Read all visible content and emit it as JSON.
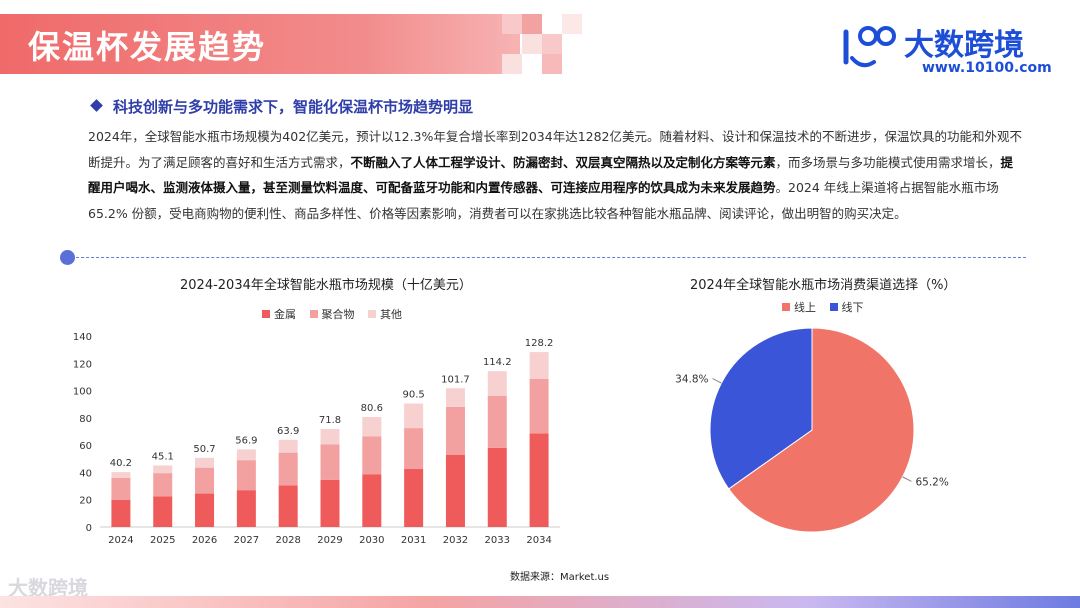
{
  "header": {
    "title": "保温杯发展趋势",
    "logo_text": "大数跨境",
    "logo_url": "www.10100.com"
  },
  "subtitle": "科技创新与多功能需求下，智能化保温杯市场趋势明显",
  "paragraph": {
    "p1": "2024年，全球智能水瓶市场规模为402亿美元，预计以12.3%年复合增长率到2034年达1282亿美元。随着材料、设计和保温技术的不断进步，保温饮具的功能和外观不断提升。为了满足顾客的喜好和生活方式需求，",
    "b1": "不断融入了人体工程学设计、防漏密封、双层真空隔热以及定制化方案等元素",
    "p2": "，而多场景与多功能模式使用需求增长，",
    "b2": "提醒用户喝水、监测液体摄入量，甚至测量饮料温度、可配备蓝牙功能和内置传感器、可连接应用程序的饮具成为未来发展趋势",
    "p3": "。2024 年线上渠道将占据智能水瓶市场 65.2% 份额，受电商购物的便利性、商品多样性、价格等因素影响，消费者可以在家挑选比较各种智能水瓶品牌、阅读评论，做出明智的购买决定。"
  },
  "source": "数据来源：Market.us",
  "footer_logo": "大数跨境",
  "colors": {
    "metal": "#ef5b5b",
    "polymer": "#f2a0a0",
    "other": "#f7d0d0",
    "online": "#f07468",
    "offline": "#3a55d8"
  },
  "chart_data": [
    {
      "type": "bar",
      "stacked": true,
      "title": "2024-2034年全球智能水瓶市场规模（十亿美元）",
      "categories": [
        "2024",
        "2025",
        "2026",
        "2027",
        "2028",
        "2029",
        "2030",
        "2031",
        "2032",
        "2033",
        "2034"
      ],
      "series": [
        {
          "name": "金属",
          "values": [
            20.0,
            22.5,
            24.5,
            27.0,
            30.5,
            34.5,
            38.5,
            42.5,
            53.0,
            58.0,
            68.5
          ]
        },
        {
          "name": "聚合物",
          "values": [
            16.0,
            17.0,
            19.0,
            22.0,
            24.0,
            26.0,
            28.0,
            30.0,
            35.0,
            38.0,
            40.0
          ]
        },
        {
          "name": "其他",
          "values": [
            4.2,
            5.6,
            7.2,
            7.9,
            9.4,
            11.3,
            14.1,
            18.0,
            13.7,
            18.2,
            19.7
          ]
        }
      ],
      "totals": [
        "40.2",
        "45.1",
        "50.7",
        "56.9",
        "63.9",
        "71.8",
        "80.6",
        "90.5",
        "101.7",
        "114.2",
        "128.2"
      ],
      "yticks": [
        "0",
        "20",
        "40",
        "60",
        "80",
        "100",
        "120",
        "140"
      ],
      "ylim": [
        0,
        140
      ],
      "legend": "top"
    },
    {
      "type": "pie",
      "title": "2024年全球智能水瓶市场消费渠道选择（%）",
      "labels": [
        "线上",
        "线下"
      ],
      "values": [
        65.2,
        34.8
      ],
      "value_labels": [
        "65.2%",
        "34.8%"
      ],
      "legend": "top"
    }
  ]
}
